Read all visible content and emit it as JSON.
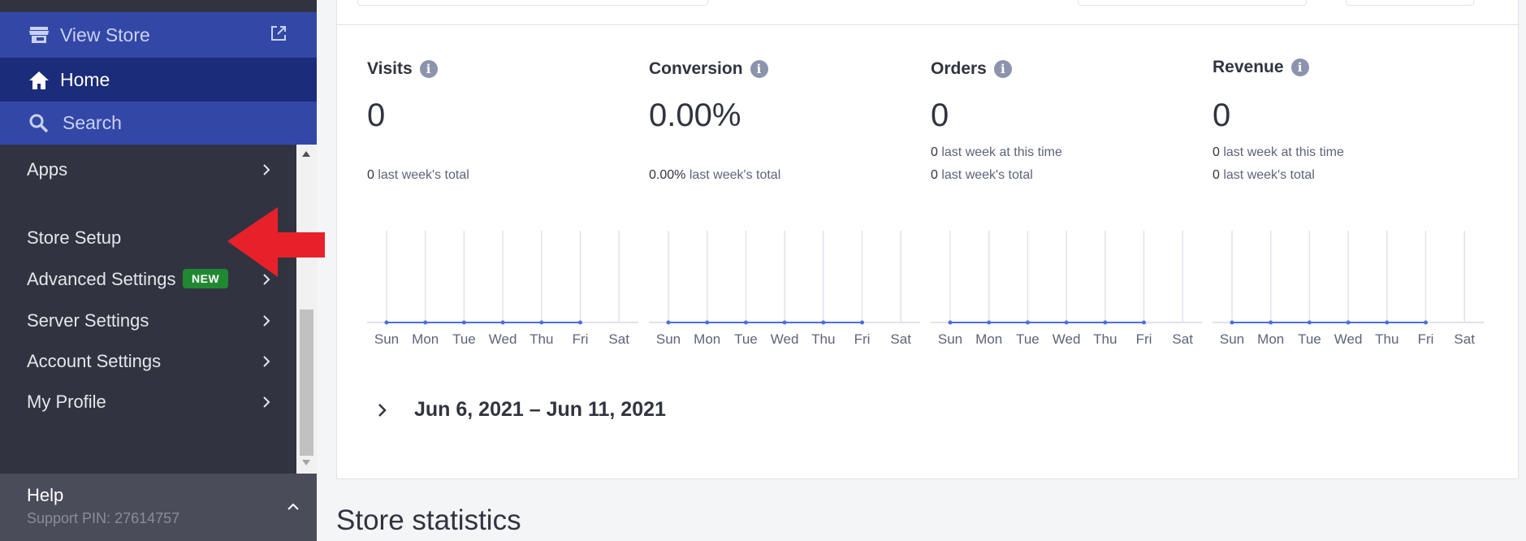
{
  "sidebar": {
    "view_store": "View Store",
    "home": "Home",
    "search": "Search",
    "items": [
      {
        "label": "Apps",
        "chevron": true
      },
      {
        "label": "Store Setup",
        "chevron": true
      },
      {
        "label": "Advanced Settings",
        "chevron": true,
        "badge": "NEW"
      },
      {
        "label": "Server Settings",
        "chevron": true
      },
      {
        "label": "Account Settings",
        "chevron": true
      },
      {
        "label": "My Profile",
        "chevron": true
      }
    ],
    "help": {
      "title": "Help",
      "pin": "Support PIN: 27614757"
    }
  },
  "metrics": [
    {
      "title": "Visits",
      "value": "0",
      "lines": [
        {
          "bold": "0",
          "text": " last week's total"
        }
      ]
    },
    {
      "title": "Conversion",
      "value": "0.00%",
      "lines": [
        {
          "bold": "0.00%",
          "text": " last week's total"
        }
      ]
    },
    {
      "title": "Orders",
      "value": "0",
      "lines": [
        {
          "bold": "0",
          "text": " last week at this time"
        },
        {
          "bold": "0",
          "text": " last week's total"
        }
      ]
    },
    {
      "title": "Revenue",
      "value": "0",
      "lines": [
        {
          "bold": "0",
          "text": " last week at this time"
        },
        {
          "bold": "0",
          "text": " last week's total"
        }
      ]
    }
  ],
  "chart_data": [
    {
      "type": "line",
      "title": "Visits",
      "categories": [
        "Sun",
        "Mon",
        "Tue",
        "Wed",
        "Thu",
        "Fri",
        "Sat"
      ],
      "values": [
        0,
        0,
        0,
        0,
        0,
        0,
        null
      ]
    },
    {
      "type": "line",
      "title": "Conversion",
      "categories": [
        "Sun",
        "Mon",
        "Tue",
        "Wed",
        "Thu",
        "Fri",
        "Sat"
      ],
      "values": [
        0,
        0,
        0,
        0,
        0,
        0,
        null
      ]
    },
    {
      "type": "line",
      "title": "Orders",
      "categories": [
        "Sun",
        "Mon",
        "Tue",
        "Wed",
        "Thu",
        "Fri",
        "Sat"
      ],
      "values": [
        0,
        0,
        0,
        0,
        0,
        0,
        null
      ]
    },
    {
      "type": "line",
      "title": "Revenue",
      "categories": [
        "Sun",
        "Mon",
        "Tue",
        "Wed",
        "Thu",
        "Fri",
        "Sat"
      ],
      "values": [
        0,
        0,
        0,
        0,
        0,
        0,
        null
      ]
    }
  ],
  "date_range": "Jun 6, 2021 – Jun 11, 2021",
  "section_title": "Store statistics",
  "colors": {
    "sidebar_bg": "#313440",
    "nav_blue": "#3348a6",
    "nav_active": "#1a2c7a",
    "badge_green": "#208831",
    "series_line": "#4a6ee0",
    "annotation_red": "#e8202a"
  }
}
